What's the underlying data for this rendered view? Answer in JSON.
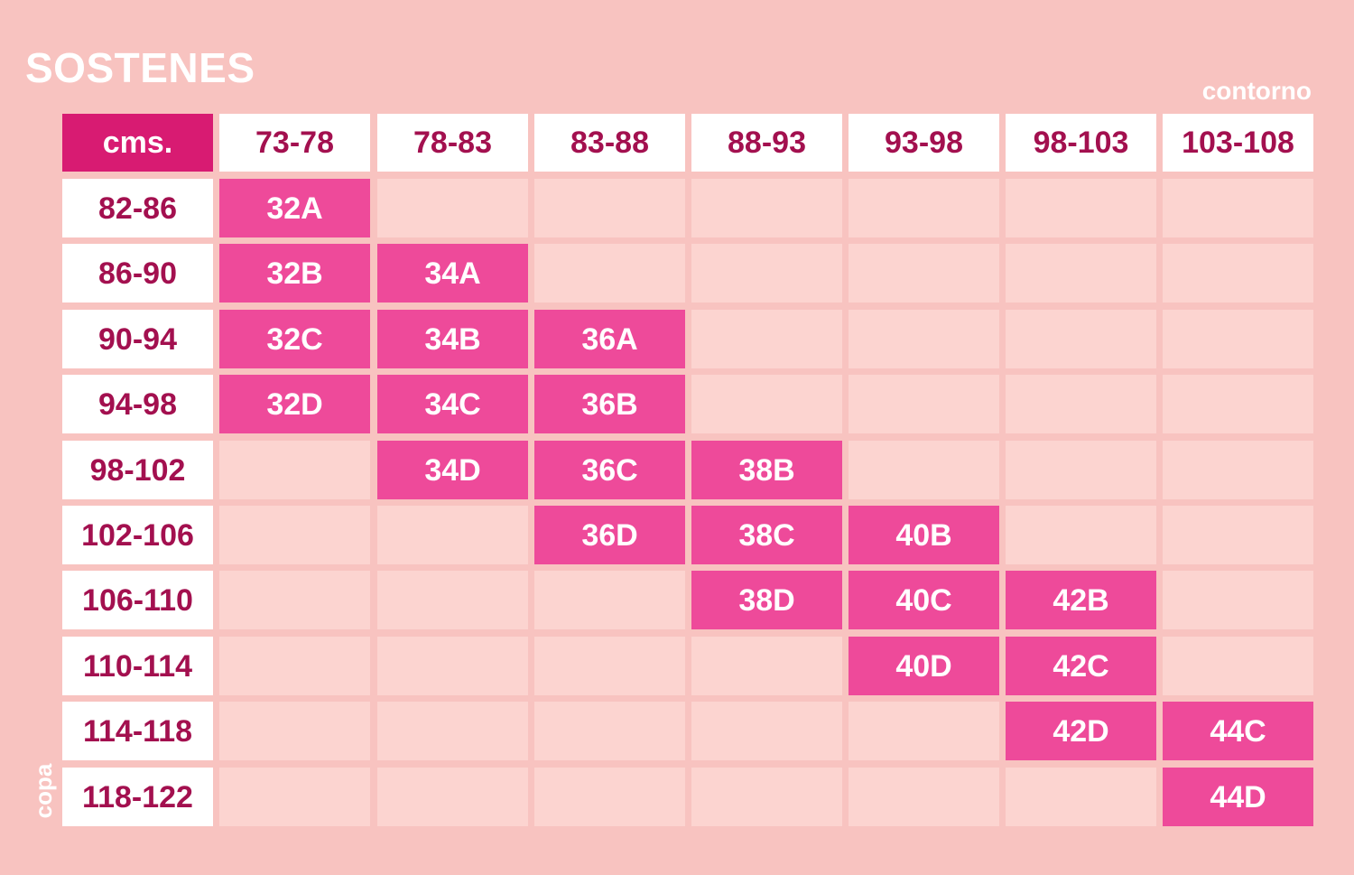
{
  "title": "SOSTENES",
  "column_axis_label": "contorno",
  "row_axis_label": "copa",
  "corner_label": "cms.",
  "columns": [
    "73-78",
    "78-83",
    "83-88",
    "88-93",
    "93-98",
    "98-103",
    "103-108"
  ],
  "rows": [
    "82-86",
    "86-90",
    "90-94",
    "94-98",
    "98-102",
    "102-106",
    "106-110",
    "110-114",
    "114-118",
    "118-122"
  ],
  "sizes": [
    [
      "32A",
      "",
      "",
      "",
      "",
      "",
      ""
    ],
    [
      "32B",
      "34A",
      "",
      "",
      "",
      "",
      ""
    ],
    [
      "32C",
      "34B",
      "36A",
      "",
      "",
      "",
      ""
    ],
    [
      "32D",
      "34C",
      "36B",
      "",
      "",
      "",
      ""
    ],
    [
      "",
      "34D",
      "36C",
      "38B",
      "",
      "",
      ""
    ],
    [
      "",
      "",
      "36D",
      "38C",
      "40B",
      "",
      ""
    ],
    [
      "",
      "",
      "",
      "38D",
      "40C",
      "42B",
      ""
    ],
    [
      "",
      "",
      "",
      "",
      "40D",
      "42C",
      ""
    ],
    [
      "",
      "",
      "",
      "",
      "",
      "42D",
      "44C"
    ],
    [
      "",
      "",
      "",
      "",
      "",
      "",
      "44D"
    ]
  ],
  "colors": {
    "background": "#f8c3c0",
    "corner": "#d81b72",
    "size_cell": "#ee4a9a",
    "empty_cell": "#fcd4d0",
    "header_text": "#a3104f"
  }
}
